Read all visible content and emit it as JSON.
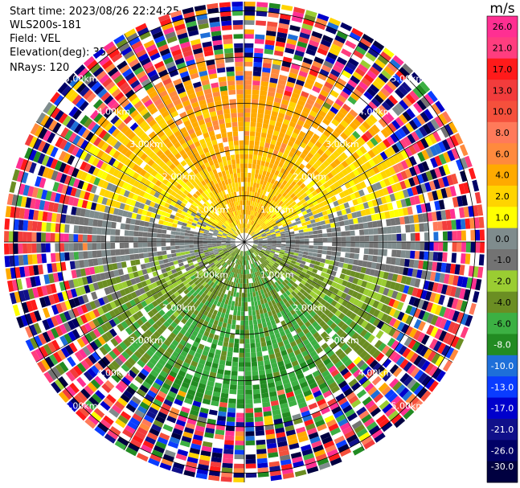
{
  "header": {
    "start_time": "Start time: 2023/08/26 22:24:25",
    "instrument": "WLS200s-181",
    "field": "Field: VEL",
    "elevation": "Elevation(deg): 35.30",
    "nrays": "NRays: 120"
  },
  "colorbar": {
    "unit": "m/s",
    "labels": [
      "26.0",
      "21.0",
      "17.0",
      "13.0",
      "10.0",
      "8.0",
      "6.0",
      "4.0",
      "2.0",
      "1.0",
      "0.0",
      "-1.0",
      "-2.0",
      "-4.0",
      "-6.0",
      "-8.0",
      "-10.0",
      "-13.0",
      "-17.0",
      "-21.0",
      "-26.0",
      "-30.0"
    ],
    "bins": [
      {
        "range": "26.0 to 30",
        "color": "#ff2f92"
      },
      {
        "range": "21.0 to 26.0",
        "color": "#ff3d7f"
      },
      {
        "range": "17.0 to 21.0",
        "color": "#ff1a1a"
      },
      {
        "range": "13.0 to 17.0",
        "color": "#f23c3c"
      },
      {
        "range": "10.0 to 13.0",
        "color": "#f5503c"
      },
      {
        "range": "8.0 to 10.0",
        "color": "#ff7a5a"
      },
      {
        "range": "6.0 to 8.0",
        "color": "#ff8a3d"
      },
      {
        "range": "4.0 to 6.0",
        "color": "#ffaa00"
      },
      {
        "range": "2.0 to 4.0",
        "color": "#ffd400"
      },
      {
        "range": "1.0 to 2.0",
        "color": "#ffff00"
      },
      {
        "range": "0.0 to 1.0",
        "color": "#7f8c8d"
      },
      {
        "range": "-1.0 to 0.0",
        "color": "#737373"
      },
      {
        "range": "-2.0 to -1.0",
        "color": "#9acd32"
      },
      {
        "range": "-4.0 to -2.0",
        "color": "#6b8e23"
      },
      {
        "range": "-6.0 to -4.0",
        "color": "#3cb043"
      },
      {
        "range": "-8.0 to -6.0",
        "color": "#228b22"
      },
      {
        "range": "-10.0 to -8.0",
        "color": "#1e6fd9"
      },
      {
        "range": "-13.0 to -10.0",
        "color": "#0a3cff"
      },
      {
        "range": "-17.0 to -13.0",
        "color": "#0000cc"
      },
      {
        "range": "-21.0 to -17.0",
        "color": "#10108a"
      },
      {
        "range": "-26.0 to -21.0",
        "color": "#000066"
      },
      {
        "range": "-30.0 to -26.0",
        "color": "#000040"
      }
    ]
  },
  "chart_data": {
    "type": "heatmap",
    "projection": "polar PPI",
    "field": "VEL",
    "nrays": 120,
    "range_rings_km": [
      1.0,
      2.0,
      3.0,
      4.0,
      5.0
    ],
    "ring_labels": [
      "1.00km",
      "2.00km",
      "3.00km",
      "4.00km",
      "5.00km"
    ],
    "max_range_km": 5.2,
    "colorbar_unit": "m/s",
    "value_range": [
      -30.0,
      30.0
    ],
    "pattern_description": "Near field: positive 2–6 m/s (yellow/orange) in the northern half, negative -2 to -8 m/s (green) in the southern half, near-zero (gray) along the east-west line; beyond ~3.5–4 km the returns become noisy with random colors across the full scale."
  }
}
